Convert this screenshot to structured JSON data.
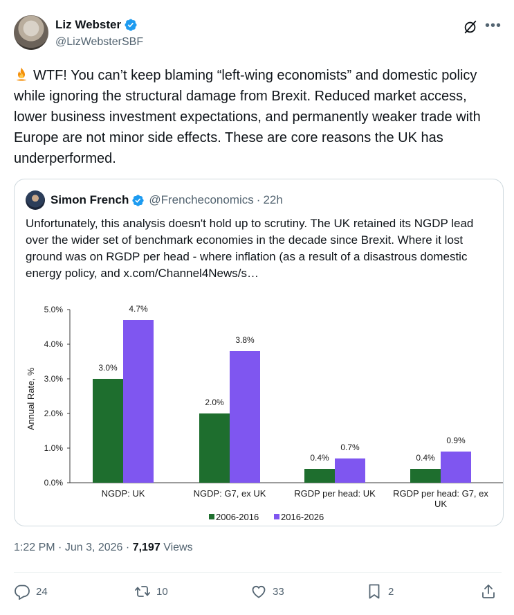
{
  "author": {
    "name": "Liz Webster",
    "handle": "@LizWebsterSBF"
  },
  "tweet": {
    "emoji": "🔥",
    "text": "WTF! You can’t keep blaming “left-wing economists” and domestic policy while ignoring the structural damage from Brexit. Reduced market access, lower business investment expectations, and permanently weaker trade with Europe are not minor side effects.  These are core reasons the UK has underperformed."
  },
  "quote": {
    "name": "Simon French",
    "handle": "@Frencheconomics",
    "separator": "·",
    "time": "22h",
    "text": "Unfortunately, this analysis doesn't hold up to scrutiny. The UK retained its NGDP lead over the wider set of benchmark economies in the decade since Brexit. Where it lost ground was on RGDP per head - where inflation (as a result of a disastrous domestic energy policy, and  x.com/Channel4News/s…"
  },
  "chart_data": {
    "type": "bar",
    "categories": [
      "NGDP: UK",
      "NGDP: G7, ex UK",
      "RGDP per head: UK",
      "RGDP per head: G7, ex UK"
    ],
    "category_lines": [
      [
        "NGDP: UK"
      ],
      [
        "NGDP: G7, ex UK"
      ],
      [
        "RGDP per head: UK"
      ],
      [
        "RGDP per head: G7, ex",
        "UK"
      ]
    ],
    "series": [
      {
        "name": "2006-2016",
        "values": [
          3.0,
          2.0,
          0.4,
          0.4
        ],
        "labels": [
          "3.0%",
          "2.0%",
          "0.4%",
          "0.4%"
        ],
        "color": "#1e6e2e"
      },
      {
        "name": "2016-2026",
        "values": [
          4.7,
          3.8,
          0.7,
          0.9
        ],
        "labels": [
          "4.7%",
          "3.8%",
          "0.7%",
          "0.9%"
        ],
        "color": "#7f56f0"
      }
    ],
    "ylabel": "Annual Rate, %",
    "ylim": [
      0,
      5
    ],
    "yticks": [
      "0.0%",
      "1.0%",
      "2.0%",
      "3.0%",
      "4.0%",
      "5.0%"
    ],
    "legend_position": "bottom-center",
    "grid": false
  },
  "meta": {
    "time": "1:22 PM",
    "dot1": "·",
    "date": "Jun 3, 2026",
    "dot2": "·",
    "views_count": "7,197",
    "views_label": "Views"
  },
  "actions": {
    "replies": "24",
    "reposts": "10",
    "likes": "33",
    "bookmarks": "2"
  },
  "colors": {
    "verified": "#1d9bf0",
    "fire": "#f4900c",
    "muted_text": "#536471"
  }
}
